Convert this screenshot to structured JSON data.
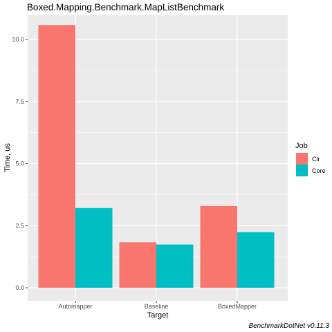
{
  "chart_data": {
    "type": "bar",
    "title": "Boxed.Mapping.Benchmark.MapListBenchmark",
    "xlabel": "Target",
    "ylabel": "Time, us",
    "categories": [
      "Automapper",
      "Baseline",
      "BoxedMapper"
    ],
    "series": [
      {
        "name": "Clr",
        "values": [
          10.58,
          1.83,
          3.29
        ]
      },
      {
        "name": "Core",
        "values": [
          3.21,
          1.74,
          2.24
        ]
      }
    ],
    "ylim": [
      0,
      10.95
    ],
    "yticks": [
      0.0,
      2.5,
      5.0,
      7.5,
      10.0
    ],
    "ytick_labels": [
      "0.0",
      "2.5",
      "5.0",
      "7.5",
      "10.0"
    ],
    "grid": true,
    "legend": {
      "title": "Job",
      "position": "right"
    },
    "caption": "BenchmarkDotNet v0.11.3"
  },
  "colors": {
    "Clr": "#f8766d",
    "Core": "#00bfc4",
    "panel": "#ebebeb",
    "grid": "#ffffff"
  }
}
